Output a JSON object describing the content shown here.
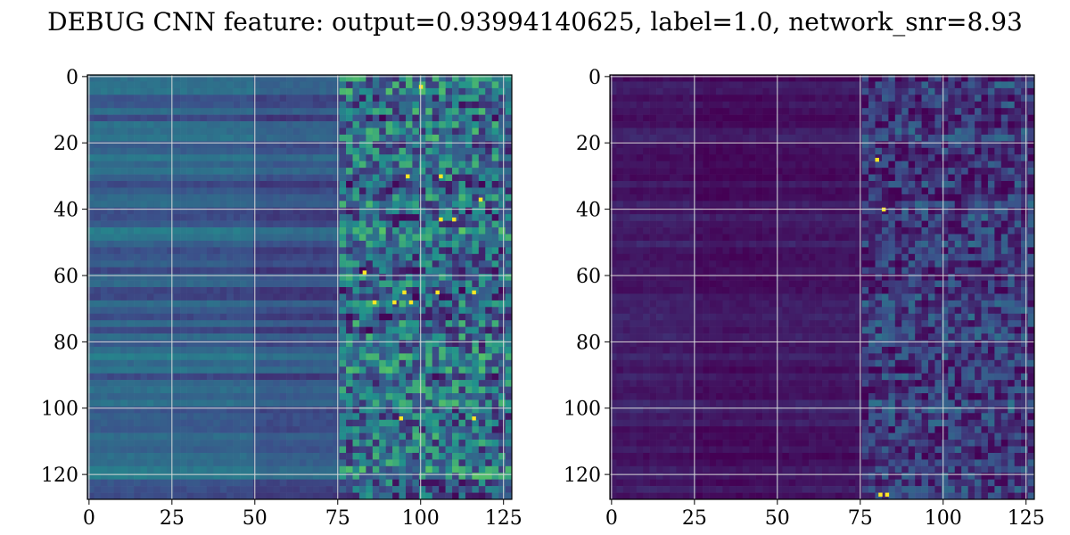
{
  "figure": {
    "title": "DEBUG CNN feature: output=0.93994140625, label=1.0, network_snr=8.93"
  },
  "chart_data": [
    {
      "type": "heatmap",
      "colormap": "viridis",
      "colormap_stops": [
        "#440154",
        "#3b528b",
        "#21918c",
        "#5ec962",
        "#fde725"
      ],
      "rows": 128,
      "cols": 128,
      "xlim": [
        0,
        127
      ],
      "ylim": [
        127,
        0
      ],
      "xticks": [
        0,
        25,
        50,
        75,
        100,
        125
      ],
      "yticks": [
        0,
        20,
        40,
        60,
        80,
        100,
        120
      ],
      "grid": true,
      "title": "",
      "xlabel": "",
      "ylabel": "",
      "value_range": [
        0,
        1
      ],
      "column_bands": [
        {
          "from": 0,
          "to": 25,
          "mean_level": 0.32
        },
        {
          "from": 25,
          "to": 50,
          "mean_level": 0.31
        },
        {
          "from": 50,
          "to": 75,
          "mean_level": 0.26
        },
        {
          "from": 75,
          "to": 128,
          "mean_level": 0.28
        }
      ],
      "bright_points": [
        {
          "x": 100,
          "y": 3
        },
        {
          "x": 96,
          "y": 30
        },
        {
          "x": 106,
          "y": 30
        },
        {
          "x": 110,
          "y": 43
        },
        {
          "x": 106,
          "y": 43
        },
        {
          "x": 95,
          "y": 65
        },
        {
          "x": 105,
          "y": 65
        },
        {
          "x": 116,
          "y": 65
        },
        {
          "x": 86,
          "y": 68
        },
        {
          "x": 92,
          "y": 68
        },
        {
          "x": 97,
          "y": 68
        },
        {
          "x": 94,
          "y": 103
        },
        {
          "x": 116,
          "y": 103
        },
        {
          "x": 83,
          "y": 59
        },
        {
          "x": 118,
          "y": 37
        }
      ]
    },
    {
      "type": "heatmap",
      "colormap": "viridis",
      "colormap_stops": [
        "#440154",
        "#3b528b",
        "#21918c",
        "#5ec962",
        "#fde725"
      ],
      "rows": 128,
      "cols": 128,
      "xlim": [
        0,
        127
      ],
      "ylim": [
        127,
        0
      ],
      "xticks": [
        0,
        25,
        50,
        75,
        100,
        125
      ],
      "yticks": [
        0,
        20,
        40,
        60,
        80,
        100,
        120
      ],
      "grid": true,
      "title": "",
      "xlabel": "",
      "ylabel": "",
      "value_range": [
        0,
        1
      ],
      "column_bands": [
        {
          "from": 0,
          "to": 25,
          "mean_level": 0.08
        },
        {
          "from": 25,
          "to": 50,
          "mean_level": 0.05
        },
        {
          "from": 50,
          "to": 75,
          "mean_level": 0.07
        },
        {
          "from": 75,
          "to": 128,
          "mean_level": 0.12
        }
      ],
      "bright_points": [
        {
          "x": 81,
          "y": 126
        },
        {
          "x": 83,
          "y": 126
        },
        {
          "x": 80,
          "y": 25
        },
        {
          "x": 82,
          "y": 40
        }
      ]
    }
  ]
}
